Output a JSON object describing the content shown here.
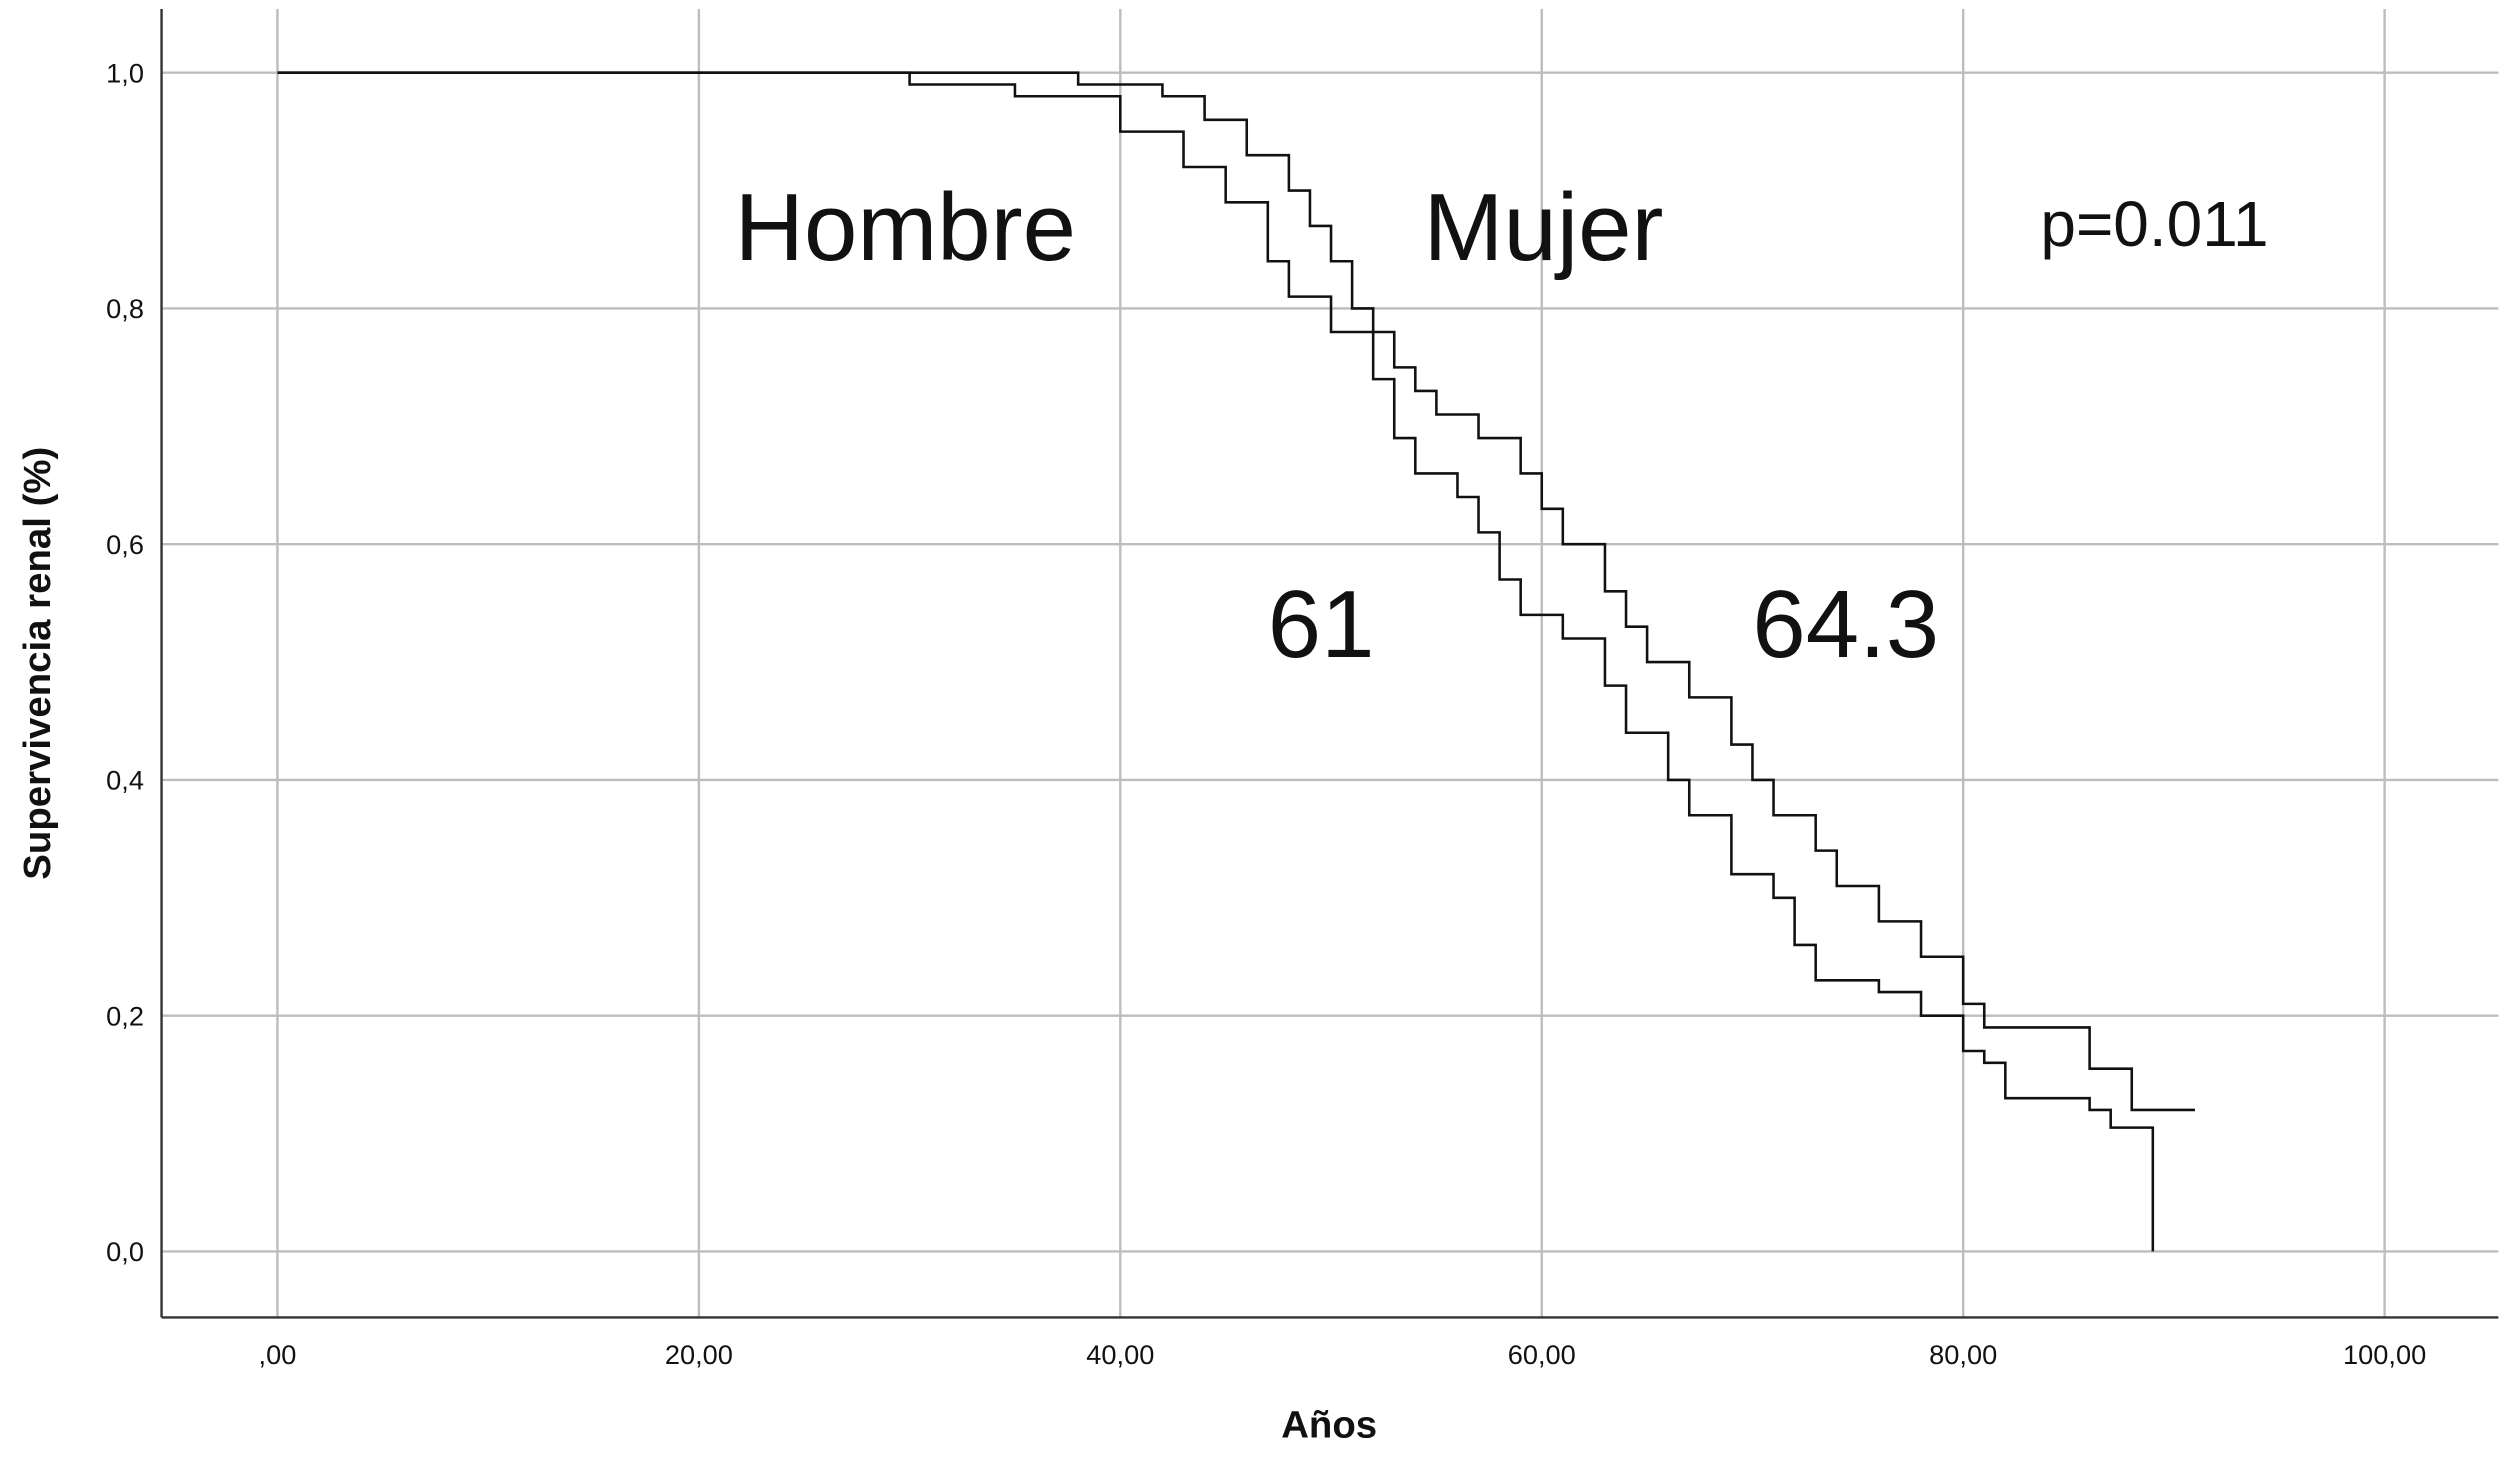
{
  "chart_data": {
    "type": "step",
    "xlabel": "Años",
    "ylabel": "Supervivencia renal (%)",
    "xlim": [
      -5.5,
      105.4
    ],
    "ylim": [
      -0.056,
      1.054
    ],
    "xticks": [
      {
        "value": 0,
        "label": ",00"
      },
      {
        "value": 20,
        "label": "20,00"
      },
      {
        "value": 40,
        "label": "40,00"
      },
      {
        "value": 60,
        "label": "60,00"
      },
      {
        "value": 80,
        "label": "80,00"
      },
      {
        "value": 100,
        "label": "100,00"
      }
    ],
    "yticks": [
      {
        "value": 0,
        "label": "0,0"
      },
      {
        "value": 0.2,
        "label": "0,2"
      },
      {
        "value": 0.4,
        "label": "0,4"
      },
      {
        "value": 0.6,
        "label": "0,6"
      },
      {
        "value": 0.8,
        "label": "0,8"
      },
      {
        "value": 1,
        "label": "1,0"
      }
    ],
    "grid": true,
    "annotations": [
      "Hombre",
      "Mujer",
      "p=0.011",
      "61",
      "64.3"
    ],
    "series": [
      {
        "name": "Hombre",
        "color": "#111111",
        "x": [
          0,
          20,
          30,
          35,
          40,
          43,
          45,
          47,
          48,
          50,
          52,
          53,
          54,
          56,
          57,
          58,
          59,
          61,
          63,
          64,
          66,
          67,
          69,
          71,
          72,
          73,
          76,
          78,
          80,
          81,
          82,
          86,
          87,
          89,
          89
        ],
        "values": [
          1,
          1,
          0.99,
          0.98,
          0.95,
          0.92,
          0.89,
          0.84,
          0.81,
          0.78,
          0.74,
          0.69,
          0.66,
          0.64,
          0.61,
          0.57,
          0.54,
          0.52,
          0.48,
          0.44,
          0.4,
          0.37,
          0.32,
          0.3,
          0.26,
          0.23,
          0.22,
          0.2,
          0.17,
          0.16,
          0.13,
          0.12,
          0.105,
          0.105,
          0
        ]
      },
      {
        "name": "Mujer",
        "color": "#111111",
        "x": [
          0,
          36,
          38,
          42,
          44,
          46,
          48,
          49,
          50,
          51,
          52,
          53,
          54,
          55,
          57,
          59,
          60,
          61,
          63,
          64,
          65,
          67,
          69,
          70,
          71,
          73,
          74,
          76,
          78,
          80,
          81,
          86,
          88,
          91
        ],
        "values": [
          1,
          1,
          0.99,
          0.98,
          0.96,
          0.93,
          0.9,
          0.87,
          0.84,
          0.8,
          0.78,
          0.75,
          0.73,
          0.71,
          0.69,
          0.66,
          0.63,
          0.6,
          0.56,
          0.53,
          0.5,
          0.47,
          0.43,
          0.4,
          0.37,
          0.34,
          0.31,
          0.28,
          0.25,
          0.21,
          0.19,
          0.155,
          0.12,
          0.12
        ]
      }
    ]
  }
}
